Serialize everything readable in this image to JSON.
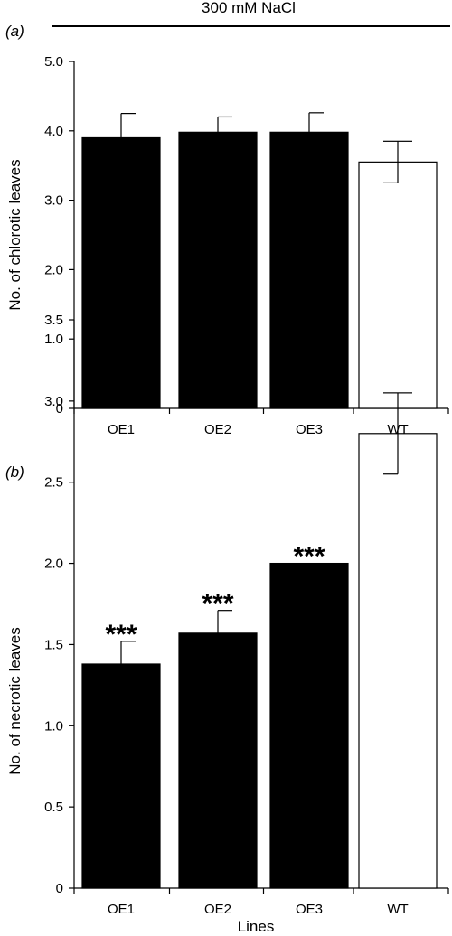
{
  "header": {
    "treatment_label": "300 mM NaCl"
  },
  "chart_data": [
    {
      "type": "bar",
      "panel_label": "(a)",
      "categories": [
        "OE1",
        "OE2",
        "OE3",
        "WT"
      ],
      "values": [
        3.9,
        3.98,
        3.98,
        3.55
      ],
      "errors": [
        0.35,
        0.22,
        0.28,
        0.3
      ],
      "bar_colors": [
        "#000000",
        "#000000",
        "#000000",
        "#ffffff"
      ],
      "annotations": [
        "",
        "",
        "",
        ""
      ],
      "xlabel": "",
      "ylabel": "No. of chlorotic leaves",
      "ylim": [
        0,
        5.0
      ],
      "yticks": [
        0,
        1.0,
        2.0,
        3.0,
        4.0,
        5.0
      ],
      "ytick_labels": [
        "0",
        "1.0",
        "2.0",
        "3.0",
        "4.0",
        "5.0"
      ],
      "grid": false
    },
    {
      "type": "bar",
      "panel_label": "(b)",
      "categories": [
        "OE1",
        "OE2",
        "OE3",
        "WT"
      ],
      "values": [
        1.38,
        1.57,
        2.0,
        2.8
      ],
      "errors": [
        0.14,
        0.14,
        0.0,
        0.25
      ],
      "bar_colors": [
        "#000000",
        "#000000",
        "#000000",
        "#ffffff"
      ],
      "annotations": [
        "***",
        "***",
        "***",
        ""
      ],
      "xlabel": "Lines",
      "ylabel": "No. of necrotic leaves",
      "ylim": [
        0,
        3.5
      ],
      "yticks": [
        0,
        0.5,
        1.0,
        1.5,
        2.0,
        2.5,
        3.0,
        3.5
      ],
      "ytick_labels": [
        "0",
        "0.5",
        "1.0",
        "1.5",
        "2.0",
        "2.5",
        "3.0",
        "3.5"
      ],
      "grid": false
    }
  ]
}
